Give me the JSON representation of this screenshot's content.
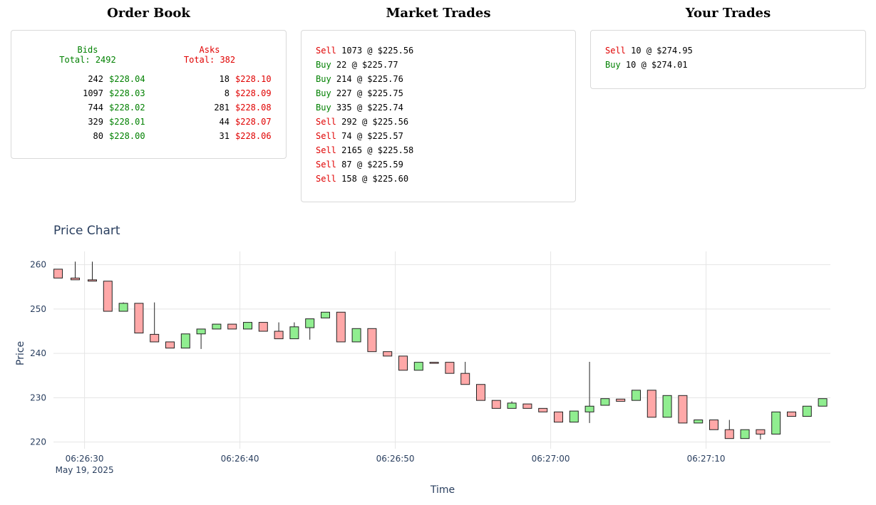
{
  "order_book": {
    "title": "Order Book",
    "bids": {
      "label": "Bids",
      "total": "Total: 2492",
      "rows": [
        {
          "qty": "242",
          "price": "$228.04"
        },
        {
          "qty": "1097",
          "price": "$228.03"
        },
        {
          "qty": "744",
          "price": "$228.02"
        },
        {
          "qty": "329",
          "price": "$228.01"
        },
        {
          "qty": "80",
          "price": "$228.00"
        }
      ]
    },
    "asks": {
      "label": "Asks",
      "total": "Total: 382",
      "rows": [
        {
          "qty": "18",
          "price": "$228.10"
        },
        {
          "qty": "8",
          "price": "$228.09"
        },
        {
          "qty": "281",
          "price": "$228.08"
        },
        {
          "qty": "44",
          "price": "$228.07"
        },
        {
          "qty": "31",
          "price": "$228.06"
        }
      ]
    }
  },
  "market_trades": {
    "title": "Market Trades",
    "trades": [
      {
        "side": "Sell",
        "detail": "1073 @ $225.56"
      },
      {
        "side": "Buy",
        "detail": "22 @ $225.77"
      },
      {
        "side": "Buy",
        "detail": "214 @ $225.76"
      },
      {
        "side": "Buy",
        "detail": "227 @ $225.75"
      },
      {
        "side": "Buy",
        "detail": "335 @ $225.74"
      },
      {
        "side": "Sell",
        "detail": "292 @ $225.56"
      },
      {
        "side": "Sell",
        "detail": "74 @ $225.57"
      },
      {
        "side": "Sell",
        "detail": "2165 @ $225.58"
      },
      {
        "side": "Sell",
        "detail": "87 @ $225.59"
      },
      {
        "side": "Sell",
        "detail": "158 @ $225.60"
      }
    ]
  },
  "your_trades": {
    "title": "Your Trades",
    "trades": [
      {
        "side": "Sell",
        "detail": "10 @ $274.95"
      },
      {
        "side": "Buy",
        "detail": "10 @ $274.01"
      }
    ]
  },
  "colors": {
    "buy": "#008000",
    "sell": "#e00000",
    "candle_up": "#90ee90",
    "candle_down": "#ffa8a8"
  },
  "chart_data": {
    "type": "candlestick",
    "title": "Price Chart",
    "xlabel": "Time",
    "ylabel": "Price",
    "ylim": [
      218.5,
      263
    ],
    "xlim": [
      "06:26:28",
      "06:27:18"
    ],
    "yticks": [
      220,
      230,
      240,
      250,
      260
    ],
    "xticks": [
      {
        "t": "06:26:30",
        "label": "06:26:30",
        "sublabel": "May 19, 2025"
      },
      {
        "t": "06:26:40",
        "label": "06:26:40"
      },
      {
        "t": "06:26:50",
        "label": "06:26:50"
      },
      {
        "t": "06:27:00",
        "label": "06:27:00"
      },
      {
        "t": "06:27:10",
        "label": "06:27:10"
      }
    ],
    "grid": true,
    "candles": [
      {
        "t": "06:26:28.3",
        "open": 259.0,
        "high": 259.0,
        "low": 257.0,
        "close": 257.0
      },
      {
        "t": "06:26:29.4",
        "open": 257.0,
        "high": 260.7,
        "low": 256.6,
        "close": 256.6
      },
      {
        "t": "06:26:30.5",
        "open": 256.6,
        "high": 260.7,
        "low": 256.3,
        "close": 256.3
      },
      {
        "t": "06:26:31.5",
        "open": 256.3,
        "high": 256.3,
        "low": 249.5,
        "close": 249.5
      },
      {
        "t": "06:26:32.5",
        "open": 249.5,
        "high": 251.5,
        "low": 249.5,
        "close": 251.3
      },
      {
        "t": "06:26:33.5",
        "open": 251.3,
        "high": 251.3,
        "low": 244.6,
        "close": 244.6
      },
      {
        "t": "06:26:34.5",
        "open": 244.3,
        "high": 251.5,
        "low": 242.6,
        "close": 242.6
      },
      {
        "t": "06:26:35.5",
        "open": 242.6,
        "high": 242.6,
        "low": 241.2,
        "close": 241.2
      },
      {
        "t": "06:26:36.5",
        "open": 241.2,
        "high": 244.4,
        "low": 241.2,
        "close": 244.4
      },
      {
        "t": "06:26:37.5",
        "open": 244.4,
        "high": 245.5,
        "low": 241.0,
        "close": 245.5
      },
      {
        "t": "06:26:38.5",
        "open": 245.5,
        "high": 246.6,
        "low": 245.5,
        "close": 246.6
      },
      {
        "t": "06:26:39.5",
        "open": 246.6,
        "high": 246.6,
        "low": 245.5,
        "close": 245.5
      },
      {
        "t": "06:26:40.5",
        "open": 245.5,
        "high": 247.0,
        "low": 245.5,
        "close": 247.0
      },
      {
        "t": "06:26:41.5",
        "open": 247.0,
        "high": 247.0,
        "low": 245.0,
        "close": 245.0
      },
      {
        "t": "06:26:42.5",
        "open": 245.0,
        "high": 247.0,
        "low": 243.3,
        "close": 243.3
      },
      {
        "t": "06:26:43.5",
        "open": 243.3,
        "high": 247.0,
        "low": 243.3,
        "close": 246.0
      },
      {
        "t": "06:26:44.5",
        "open": 245.8,
        "high": 247.8,
        "low": 243.1,
        "close": 247.8
      },
      {
        "t": "06:26:45.5",
        "open": 248.0,
        "high": 249.3,
        "low": 248.0,
        "close": 249.3
      },
      {
        "t": "06:26:46.5",
        "open": 249.3,
        "high": 249.3,
        "low": 242.6,
        "close": 242.6
      },
      {
        "t": "06:26:47.5",
        "open": 242.6,
        "high": 245.6,
        "low": 242.6,
        "close": 245.6
      },
      {
        "t": "06:26:48.5",
        "open": 245.6,
        "high": 245.6,
        "low": 240.4,
        "close": 240.4
      },
      {
        "t": "06:26:49.5",
        "open": 240.4,
        "high": 240.4,
        "low": 239.4,
        "close": 239.4
      },
      {
        "t": "06:26:50.5",
        "open": 239.4,
        "high": 239.4,
        "low": 236.2,
        "close": 236.2
      },
      {
        "t": "06:26:51.5",
        "open": 236.2,
        "high": 238.0,
        "low": 236.2,
        "close": 238.0
      },
      {
        "t": "06:26:52.5",
        "open": 238.0,
        "high": 238.0,
        "low": 237.8,
        "close": 237.8
      },
      {
        "t": "06:26:53.5",
        "open": 238.0,
        "high": 238.0,
        "low": 235.5,
        "close": 235.5
      },
      {
        "t": "06:26:54.5",
        "open": 235.5,
        "high": 238.1,
        "low": 233.0,
        "close": 233.0
      },
      {
        "t": "06:26:55.5",
        "open": 233.0,
        "high": 233.0,
        "low": 229.4,
        "close": 229.4
      },
      {
        "t": "06:26:56.5",
        "open": 229.4,
        "high": 229.4,
        "low": 227.6,
        "close": 227.6
      },
      {
        "t": "06:26:57.5",
        "open": 227.6,
        "high": 229.2,
        "low": 227.6,
        "close": 228.8
      },
      {
        "t": "06:26:58.5",
        "open": 228.6,
        "high": 228.6,
        "low": 227.6,
        "close": 227.6
      },
      {
        "t": "06:26:59.5",
        "open": 227.6,
        "high": 227.6,
        "low": 226.8,
        "close": 226.8
      },
      {
        "t": "06:27:00.5",
        "open": 226.8,
        "high": 226.8,
        "low": 224.5,
        "close": 224.5
      },
      {
        "t": "06:27:01.5",
        "open": 224.5,
        "high": 227.0,
        "low": 224.5,
        "close": 227.0
      },
      {
        "t": "06:27:02.5",
        "open": 226.8,
        "high": 238.1,
        "low": 224.3,
        "close": 228.1
      },
      {
        "t": "06:27:03.5",
        "open": 228.3,
        "high": 229.8,
        "low": 228.3,
        "close": 229.8
      },
      {
        "t": "06:27:04.5",
        "open": 229.7,
        "high": 229.7,
        "low": 229.2,
        "close": 229.2
      },
      {
        "t": "06:27:05.5",
        "open": 229.4,
        "high": 231.7,
        "low": 229.4,
        "close": 231.7
      },
      {
        "t": "06:27:06.5",
        "open": 231.7,
        "high": 231.7,
        "low": 225.6,
        "close": 225.6
      },
      {
        "t": "06:27:07.5",
        "open": 225.6,
        "high": 230.5,
        "low": 225.6,
        "close": 230.5
      },
      {
        "t": "06:27:08.5",
        "open": 230.5,
        "high": 230.5,
        "low": 224.3,
        "close": 224.3
      },
      {
        "t": "06:27:09.5",
        "open": 224.3,
        "high": 225.0,
        "low": 224.3,
        "close": 225.0
      },
      {
        "t": "06:27:10.5",
        "open": 225.0,
        "high": 225.0,
        "low": 222.8,
        "close": 222.8
      },
      {
        "t": "06:27:11.5",
        "open": 222.8,
        "high": 225.0,
        "low": 220.8,
        "close": 220.8
      },
      {
        "t": "06:27:12.5",
        "open": 220.8,
        "high": 222.8,
        "low": 220.8,
        "close": 222.8
      },
      {
        "t": "06:27:13.5",
        "open": 222.8,
        "high": 222.8,
        "low": 220.6,
        "close": 221.8
      },
      {
        "t": "06:27:14.5",
        "open": 221.8,
        "high": 226.8,
        "low": 221.8,
        "close": 226.8
      },
      {
        "t": "06:27:15.5",
        "open": 226.8,
        "high": 226.8,
        "low": 225.8,
        "close": 225.8
      },
      {
        "t": "06:27:16.5",
        "open": 225.8,
        "high": 228.1,
        "low": 225.8,
        "close": 228.1
      },
      {
        "t": "06:27:17.5",
        "open": 228.1,
        "high": 229.8,
        "low": 228.1,
        "close": 229.8
      }
    ]
  }
}
